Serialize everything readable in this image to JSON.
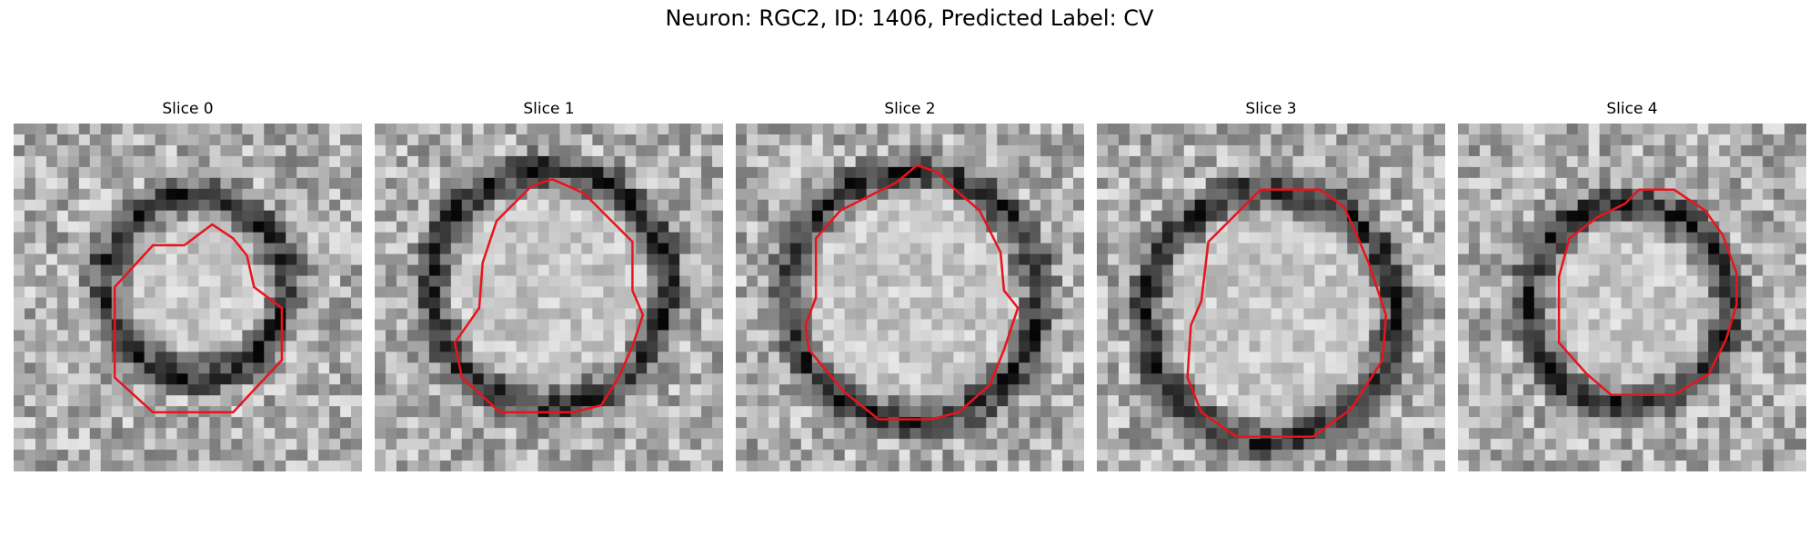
{
  "figure": {
    "title": "Neuron: RGC2, ID: 1406, Predicted Label: CV"
  },
  "panels": [
    {
      "title": "Slice 0"
    },
    {
      "title": "Slice 1"
    },
    {
      "title": "Slice 2"
    },
    {
      "title": "Slice 3"
    },
    {
      "title": "Slice 4"
    }
  ],
  "colors": {
    "contour": "#e8141c",
    "background": "#ffffff"
  }
}
